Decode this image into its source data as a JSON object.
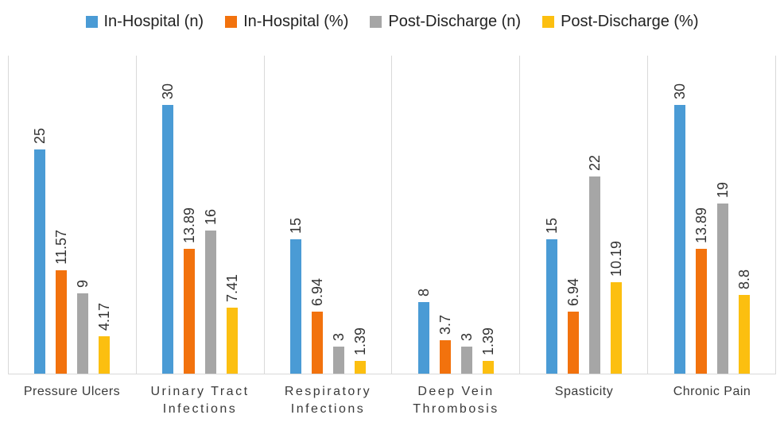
{
  "chart_data": {
    "type": "bar",
    "title": "",
    "xlabel": "",
    "ylabel": "",
    "ylim": [
      0,
      35
    ],
    "grid": "vertical-category-separators",
    "legend_position": "top",
    "value_label_orientation": "rotated-90-bottom-to-top",
    "categories": [
      {
        "label": "Pressure Ulcers",
        "lines": [
          "Pressure Ulcers"
        ]
      },
      {
        "label": "Urinary Tract Infections",
        "lines": [
          "Urinary Tract",
          "Infections"
        ]
      },
      {
        "label": "Respiratory Infections",
        "lines": [
          "Respiratory",
          "Infections"
        ]
      },
      {
        "label": "Deep Vein Thrombosis",
        "lines": [
          "Deep Vein",
          "Thrombosis"
        ]
      },
      {
        "label": "Spasticity",
        "lines": [
          "Spasticity"
        ]
      },
      {
        "label": "Chronic Pain",
        "lines": [
          "Chronic Pain"
        ]
      }
    ],
    "series": [
      {
        "name": "In-Hospital (n)",
        "color": "#4A9BD5",
        "values": [
          25,
          30,
          15,
          8,
          15,
          30
        ]
      },
      {
        "name": "In-Hospital (%)",
        "color": "#F2720D",
        "values": [
          11.57,
          13.89,
          6.94,
          3.7,
          6.94,
          13.89
        ]
      },
      {
        "name": "Post-Discharge (n)",
        "color": "#A6A6A6",
        "values": [
          9,
          16,
          3,
          3,
          22,
          19
        ]
      },
      {
        "name": "Post-Discharge (%)",
        "color": "#FCBF10",
        "values": [
          4.17,
          7.41,
          1.39,
          1.39,
          10.19,
          8.8
        ]
      }
    ]
  },
  "colors": {
    "separator_line": "#d9d9d9",
    "value_label_text": "#333333",
    "category_label_text": "#3a3a3a",
    "legend_text": "#222222",
    "background": "#ffffff"
  }
}
